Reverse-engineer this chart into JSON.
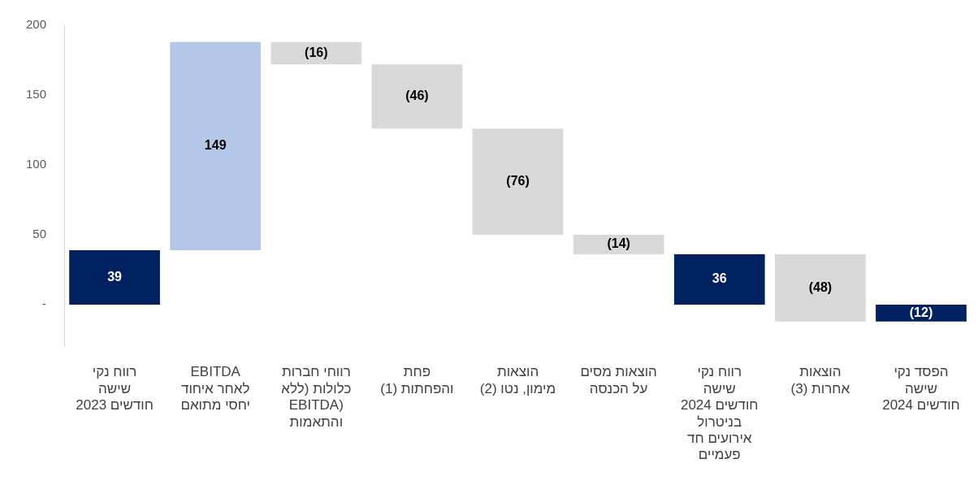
{
  "chart_data": {
    "type": "bar",
    "categories": [
      "רווח נקי שישה חודשים 2023",
      "EBITDA לאחר איחוד יחסי מתואם",
      "רווחי חברות כלולות (ללא EBITDA) והתאמות",
      "פחת והפחתות (1)",
      "הוצאות מימון, נטו (2)",
      "הוצאות מסים על הכנסה",
      "רווח נקי שישה חודשים 2024 בניטרול אירועים חד פעמיים",
      "הוצאות אחרות (3)",
      "הפסד נקי שישה חודשים 2024"
    ],
    "values": [
      39,
      149,
      -16,
      -46,
      -76,
      -14,
      36,
      -48,
      -12
    ],
    "base": [
      0,
      39,
      188,
      172,
      126,
      50,
      0,
      36,
      0
    ],
    "colors": [
      "#002060",
      "#b4c7e7",
      "#d9d9d9",
      "#d9d9d9",
      "#d9d9d9",
      "#d9d9d9",
      "#002060",
      "#d9d9d9",
      "#002060"
    ],
    "value_labels": [
      "39",
      "149",
      "(16)",
      "(46)",
      "(76)",
      "(14)",
      "36",
      "(48)",
      "(12)"
    ],
    "ylim": [
      -30,
      200
    ],
    "yticks": [
      {
        "value": 0,
        "label": "-"
      },
      50,
      100,
      150,
      200
    ],
    "grid": false,
    "legend": false
  }
}
